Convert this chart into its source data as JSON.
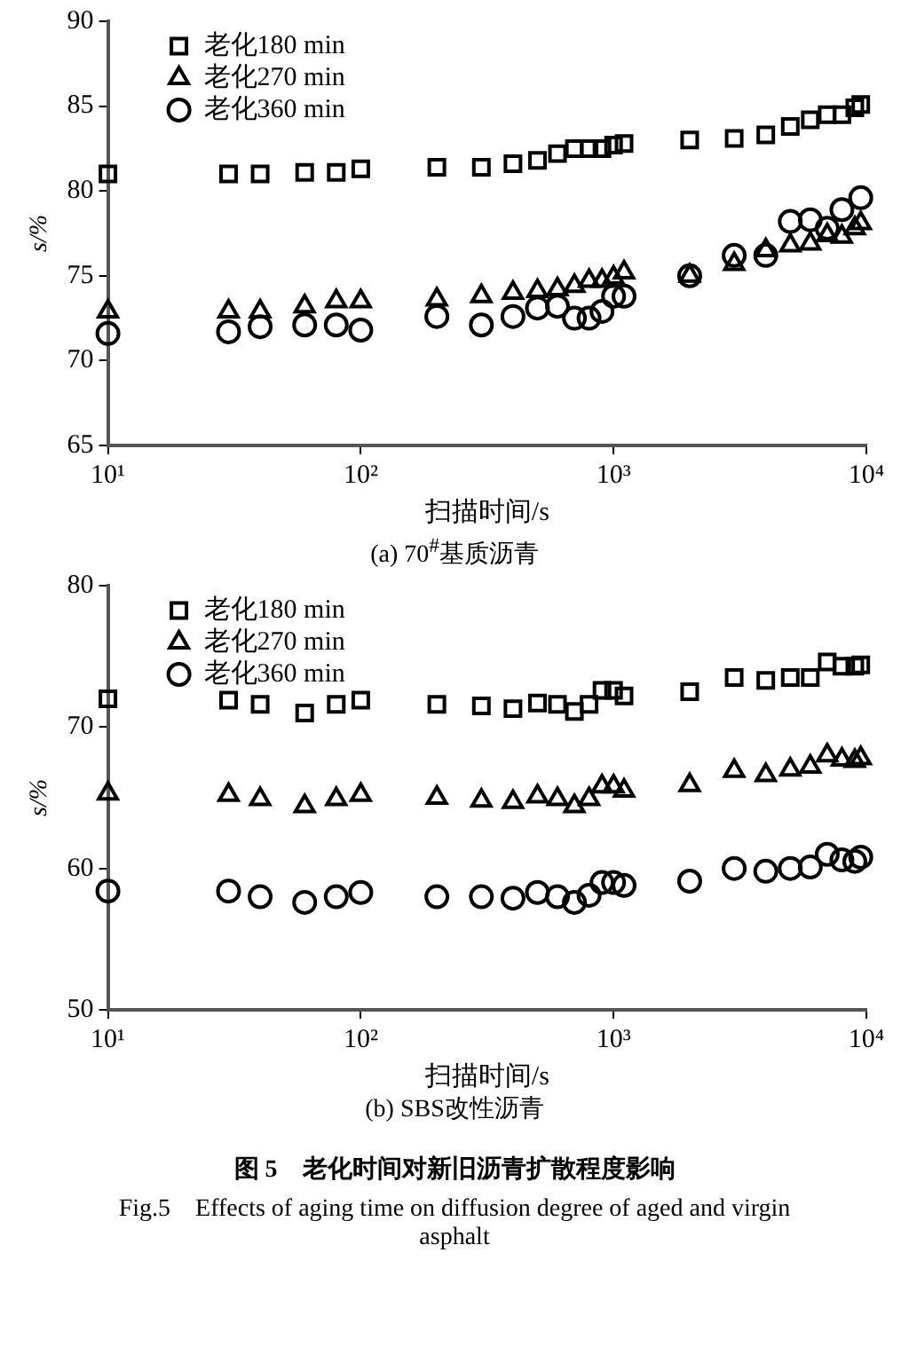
{
  "chart_data": [
    {
      "type": "scatter",
      "title": "(a) 70$^{#}$基质沥青",
      "xlabel": "扫描时间/s",
      "ylabel": "s/%",
      "log": "x",
      "xlim": [
        10,
        10000
      ],
      "xticks": [
        {
          "value": 10,
          "label": "10¹"
        },
        {
          "value": 100,
          "label": "10²"
        },
        {
          "value": 1000,
          "label": "10³"
        },
        {
          "value": 10000,
          "label": "10⁴"
        }
      ],
      "ylim": [
        65,
        90
      ],
      "yticks": [
        65,
        70,
        75,
        80,
        85,
        90
      ],
      "grid": false,
      "legend": "top left",
      "x": [
        10,
        30,
        40,
        60,
        80,
        100,
        200,
        300,
        400,
        500,
        600,
        700,
        800,
        900,
        1000,
        1100,
        2000,
        3000,
        4000,
        5000,
        6000,
        7000,
        8000,
        9000,
        9500
      ],
      "series": [
        {
          "name": "老化180 min",
          "color": "#000000",
          "marker": "square",
          "values": [
            81.0,
            81.0,
            81.0,
            81.1,
            81.1,
            81.3,
            81.4,
            81.4,
            81.6,
            81.8,
            82.2,
            82.5,
            82.5,
            82.5,
            82.7,
            82.8,
            83.0,
            83.1,
            83.3,
            83.8,
            84.2,
            84.5,
            84.5,
            84.9,
            85.1
          ]
        },
        {
          "name": "老化270 min",
          "color": "#000000",
          "marker": "triangle",
          "values": [
            72.9,
            72.9,
            72.9,
            73.2,
            73.5,
            73.5,
            73.6,
            73.8,
            74.0,
            74.1,
            74.2,
            74.4,
            74.7,
            74.7,
            74.9,
            75.2,
            75.0,
            75.7,
            76.5,
            76.8,
            76.9,
            77.4,
            77.3,
            77.8,
            78.1
          ]
        },
        {
          "name": "老化360 min",
          "color": "#000000",
          "marker": "circle",
          "values": [
            71.6,
            71.7,
            72.0,
            72.1,
            72.1,
            71.8,
            72.6,
            72.1,
            72.6,
            73.1,
            73.2,
            72.5,
            72.5,
            72.9,
            73.8,
            73.8,
            75.0,
            76.2,
            76.2,
            78.2,
            78.3,
            77.8,
            78.9,
            null,
            79.6
          ]
        }
      ]
    },
    {
      "type": "scatter",
      "title": "(b) SBS改性沥青",
      "xlabel": "扫描时间/s",
      "ylabel": "s/%",
      "log": "x",
      "xlim": [
        10,
        10000
      ],
      "xticks": [
        {
          "value": 10,
          "label": "10¹"
        },
        {
          "value": 100,
          "label": "10²"
        },
        {
          "value": 1000,
          "label": "10³"
        },
        {
          "value": 10000,
          "label": "10⁴"
        }
      ],
      "ylim": [
        50,
        80
      ],
      "yticks": [
        50,
        60,
        70,
        80
      ],
      "grid": false,
      "legend": "top left",
      "x": [
        10,
        30,
        40,
        60,
        80,
        100,
        200,
        300,
        400,
        500,
        600,
        700,
        800,
        900,
        1000,
        1100,
        2000,
        3000,
        4000,
        5000,
        6000,
        7000,
        8000,
        9000,
        9500
      ],
      "series": [
        {
          "name": "老化180 min",
          "color": "#000000",
          "marker": "square",
          "values": [
            72.0,
            71.9,
            71.6,
            71.0,
            71.6,
            71.9,
            71.6,
            71.5,
            71.3,
            71.7,
            71.6,
            71.1,
            71.6,
            72.6,
            72.6,
            72.2,
            72.5,
            73.5,
            73.3,
            73.5,
            73.5,
            74.6,
            74.3,
            74.3,
            74.4
          ]
        },
        {
          "name": "老化270 min",
          "color": "#000000",
          "marker": "triangle",
          "values": [
            65.3,
            65.2,
            64.9,
            64.4,
            64.9,
            65.2,
            65.0,
            64.8,
            64.7,
            65.1,
            64.9,
            64.4,
            64.9,
            65.8,
            65.8,
            65.5,
            65.9,
            66.9,
            66.6,
            67.0,
            67.2,
            68.0,
            67.7,
            67.6,
            67.8
          ]
        },
        {
          "name": "老化360 min",
          "color": "#000000",
          "marker": "circle",
          "values": [
            58.4,
            58.4,
            58.0,
            57.6,
            58.0,
            58.3,
            58.0,
            58.0,
            57.9,
            58.3,
            58.0,
            57.6,
            58.1,
            59.0,
            59.0,
            58.8,
            59.1,
            60.0,
            59.8,
            60.0,
            60.1,
            61.0,
            60.6,
            60.5,
            60.8
          ]
        }
      ],
      "annotations": [
        "图 5　老化时间对新旧沥青扩散程度影响",
        "Fig.5　Effects of aging time on diffusion degree of aged and virgin asphalt"
      ]
    }
  ]
}
